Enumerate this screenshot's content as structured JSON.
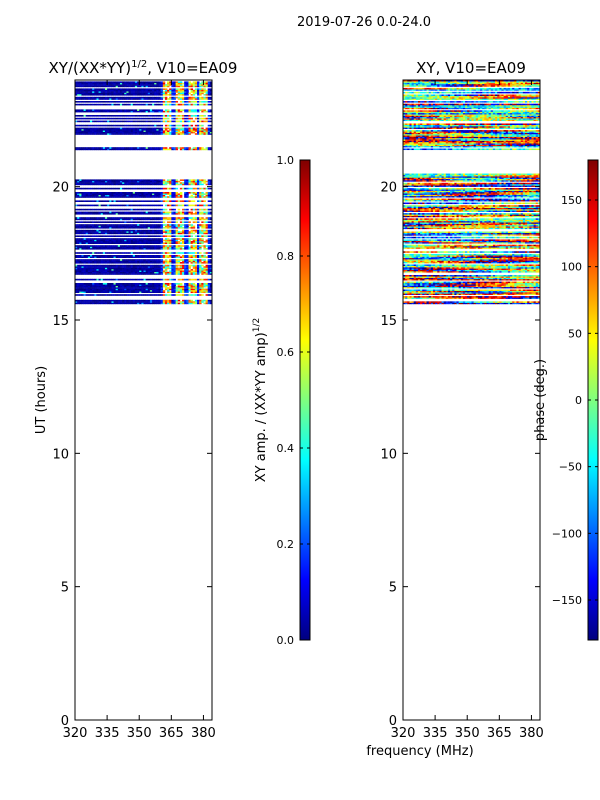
{
  "figure": {
    "suptitle": "2019-07-26 0.0-24.0",
    "xlabel": "frequency (MHz)"
  },
  "colors": {
    "jet_stops": [
      "#00007f",
      "#0000ff",
      "#007fff",
      "#00ffff",
      "#7fff7f",
      "#ffff00",
      "#ff7f00",
      "#ff0000",
      "#7f0000"
    ],
    "axis": "#000000",
    "background": "#ffffff"
  },
  "chart_data": [
    {
      "type": "heatmap",
      "id": "amp",
      "title_base": "XY/(XX*YY)",
      "title_exp": "1/2",
      "title_suffix": ", V10=EA09",
      "xlabel": "",
      "ylabel": "UT (hours)",
      "xlim": [
        320,
        384
      ],
      "ylim": [
        0,
        24
      ],
      "xticks": [
        320,
        335,
        350,
        365,
        380
      ],
      "yticks": [
        0,
        5,
        10,
        15,
        20
      ],
      "data_hours": [
        15.6,
        24.0
      ],
      "empty_hour_bands": [
        [
          20.3,
          21.4
        ],
        [
          21.5,
          21.9
        ]
      ],
      "bright_channel_groups_mhz": [
        [
          361,
          365
        ],
        [
          367,
          371
        ],
        [
          373,
          377
        ],
        [
          378,
          382
        ]
      ],
      "colorbar": {
        "label_base": "XY amp. / (XX*YY amp)",
        "label_exp": "1/2",
        "vmin": 0.0,
        "vmax": 1.0,
        "ticks": [
          "0.0",
          "0.2",
          "0.4",
          "0.6",
          "0.8",
          "1.0"
        ],
        "tick_values": [
          0.0,
          0.2,
          0.4,
          0.6,
          0.8,
          1.0
        ]
      }
    },
    {
      "type": "heatmap",
      "id": "phase",
      "title": "XY, V10=EA09",
      "xlabel": "frequency (MHz)",
      "ylabel": "",
      "xlim": [
        320,
        384
      ],
      "ylim": [
        0,
        24
      ],
      "xticks": [
        320,
        335,
        350,
        365,
        380
      ],
      "yticks": [
        0,
        5,
        10,
        15,
        20
      ],
      "data_hours": [
        15.6,
        24.0
      ],
      "empty_hour_bands": [
        [
          20.5,
          21.4
        ]
      ],
      "colorbar": {
        "label": "phase (deg.)",
        "vmin": -180,
        "vmax": 180,
        "ticks": [
          "−150",
          "−100",
          "−50",
          "0",
          "50",
          "100",
          "150"
        ],
        "tick_values": [
          -150,
          -100,
          -50,
          0,
          50,
          100,
          150
        ]
      }
    }
  ]
}
